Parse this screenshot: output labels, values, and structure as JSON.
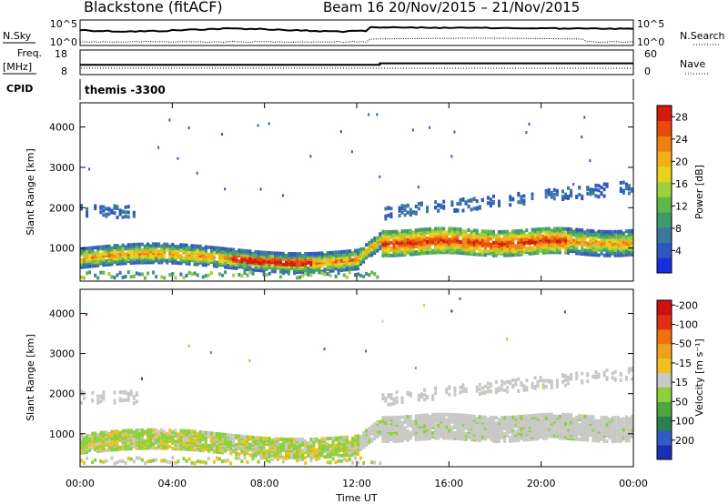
{
  "header": {
    "station": "Blackstone (fitACF)",
    "beam_date": "Beam 16  20/Nov/2015 – 21/Nov/2015"
  },
  "noise_panel": {
    "left_label": "N.Sky",
    "right_label": "N.Search",
    "left_ticks": [
      "10^5",
      "10^0"
    ],
    "right_ticks": [
      "10^5",
      "10^0"
    ]
  },
  "freq_panel": {
    "left_label_1": "Freq.",
    "left_label_2": "[MHz]",
    "left_ticks": [
      "18",
      "8"
    ],
    "right_ticks": [
      "60",
      "0"
    ],
    "right_label": "Nave",
    "freq_before_mhz": 10.5,
    "freq_after_mhz": 12.0,
    "freq_step_hour": 13
  },
  "cpid_panel": {
    "label": "CPID",
    "value": "themis -3300"
  },
  "chart_data": [
    {
      "type": "heatmap",
      "panel": "power",
      "ylabel": "Slant Range [km]",
      "xlabel": "",
      "xlim_hours": [
        0,
        24
      ],
      "ylim_km": [
        180,
        4600
      ],
      "y_ticks": [
        "1000",
        "2000",
        "3000",
        "4000"
      ],
      "x_ticks": [
        "00:00",
        "04:00",
        "08:00",
        "12:00",
        "16:00",
        "20:00",
        "00:00"
      ],
      "colorbar_label": "Power [dB]",
      "colorbar_ticks": [
        "4",
        "8",
        "12",
        "16",
        "20",
        "24",
        "28"
      ],
      "colorbar_range": [
        0,
        30
      ],
      "colorbar_colors": [
        "#1530d8",
        "#2f57c0",
        "#3a78a0",
        "#3f9a6c",
        "#5fb84a",
        "#9fcf3a",
        "#e9d21e",
        "#f3b017",
        "#ef7f12",
        "#e64a0c",
        "#d41a0a"
      ]
    },
    {
      "type": "heatmap",
      "panel": "velocity",
      "ylabel": "Slant Range [km]",
      "xlabel": "Time UT",
      "xlim_hours": [
        0,
        24
      ],
      "ylim_km": [
        180,
        4600
      ],
      "y_ticks": [
        "1000",
        "2000",
        "3000",
        "4000"
      ],
      "x_ticks": [
        "00:00",
        "04:00",
        "08:00",
        "12:00",
        "16:00",
        "20:00",
        "00:00"
      ],
      "colorbar_label": "Velocity [m s⁻¹]",
      "colorbar_ticks": [
        "200",
        "100",
        "50",
        "15",
        "-15",
        "-50",
        "-100",
        "-200"
      ],
      "colorbar_range": [
        -250,
        250
      ],
      "colorbar_colors": [
        "#1a2fb8",
        "#2f5cc4",
        "#2c8050",
        "#4ca640",
        "#8cd040",
        "#c8c8c4",
        "#f0c020",
        "#f0a020",
        "#f07010",
        "#e03010",
        "#d01010"
      ]
    }
  ]
}
